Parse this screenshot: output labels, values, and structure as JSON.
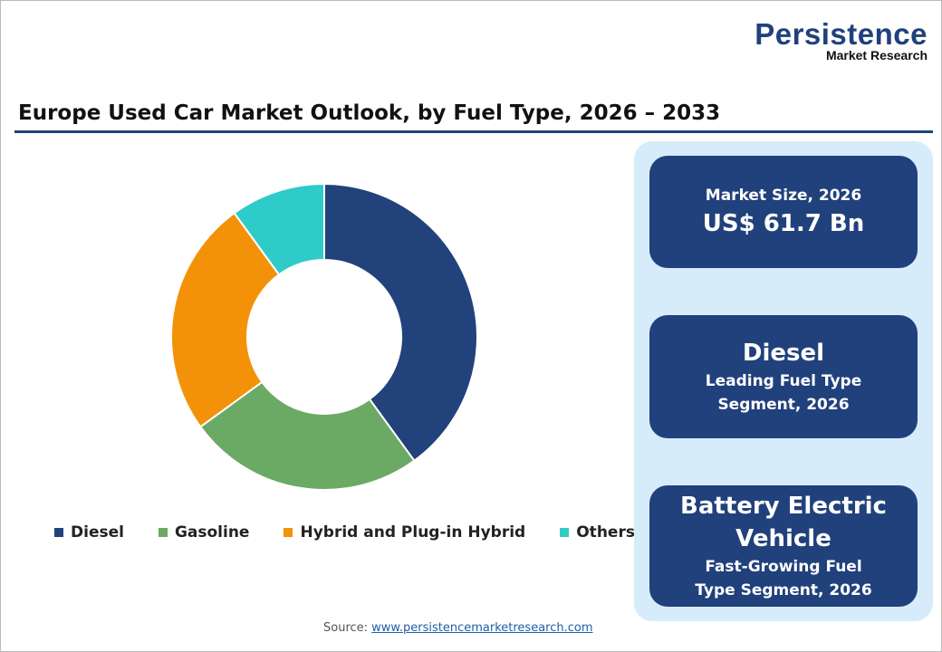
{
  "logo": {
    "line1": "Persistence",
    "line2": "Market Research"
  },
  "title": "Europe Used Car Market Outlook, by Fuel Type, 2026 – 2033",
  "chart_data": {
    "type": "pie",
    "donut": true,
    "categories": [
      "Diesel",
      "Gasoline",
      "Hybrid and Plug-in Hybrid",
      "Others"
    ],
    "values": [
      40,
      25,
      25,
      10
    ],
    "colors": [
      "#22427b",
      "#6aaa64",
      "#f39208",
      "#2ecbc8"
    ],
    "legend_position": "bottom"
  },
  "source": {
    "label": "Source:",
    "link": "www.persistencemarketresearch.com"
  },
  "cards": [
    {
      "label": "Market Size, 2026",
      "value": "US$ 61.7 Bn"
    },
    {
      "value": "Diesel",
      "label": "Leading Fuel Type Segment, 2026"
    },
    {
      "value": "Battery Electric Vehicle",
      "label": "Fast-Growing Fuel Type Segment, 2026"
    }
  ]
}
